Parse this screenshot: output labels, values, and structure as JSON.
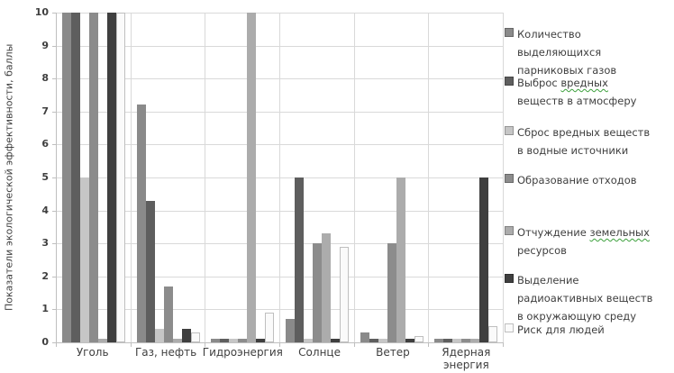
{
  "chart_data": {
    "type": "bar",
    "title": "",
    "xlabel": "",
    "ylabel": "Показатели экологической эффективности, баллы",
    "ylim": [
      0,
      10
    ],
    "ytick_step": 1,
    "grid": true,
    "legend_position": "right",
    "categories": [
      "Уголь",
      "Газ, нефть",
      "Гидроэнергия",
      "Солнце",
      "Ветер",
      "Ядерная энергия"
    ],
    "series": [
      {
        "name": "Количество выделяющихся парниковых газов",
        "label_lines": [
          "Количество",
          "выделяющихся",
          "парниковых газов"
        ],
        "color": "#8a8a8a",
        "values": [
          10,
          7.2,
          0.1,
          0.7,
          0.3,
          0.1
        ]
      },
      {
        "name": "Выброс вредных веществ в атмосферу",
        "label_lines": [
          "Выброс вредных",
          "веществ в атмосферу"
        ],
        "spellcheck_word": "вредных",
        "color": "#5e5e5e",
        "values": [
          10,
          4.3,
          0.1,
          5,
          0.1,
          0.1
        ]
      },
      {
        "name": "Сброс вредных веществ в водные источники",
        "label_lines": [
          "Сброс вредных веществ",
          "в водные источники"
        ],
        "color": "#c6c6c6",
        "values": [
          5,
          0.4,
          0.1,
          0.1,
          0.1,
          0.1
        ]
      },
      {
        "name": "Образование отходов",
        "label_lines": [
          "Образование отходов"
        ],
        "color": "#8c8c8c",
        "values": [
          10,
          1.7,
          0.1,
          3,
          3,
          0.1
        ]
      },
      {
        "name": "Отчуждение земельных ресурсов",
        "label_lines": [
          "Отчуждение земельных",
          "ресурсов"
        ],
        "spellcheck_word": "земельных",
        "color": "#acacac",
        "values": [
          0.1,
          0.1,
          10,
          3.3,
          5,
          0.1
        ]
      },
      {
        "name": "Выделение радиоактивных веществ в окружающую среду",
        "label_lines": [
          "Выделение",
          "радиоактивных веществ",
          "в окружающую среду"
        ],
        "color": "#3f3f3f",
        "values": [
          10,
          0.4,
          0.1,
          0.1,
          0.1,
          5
        ]
      },
      {
        "name": "Риск для людей",
        "label_lines": [
          "Риск для людей"
        ],
        "color": "#fafafa",
        "border_color": "#bfbfbf",
        "values": [
          10,
          0.3,
          0.9,
          2.9,
          0.2,
          0.5
        ]
      }
    ]
  },
  "colors": {
    "gridline": "#d9d9d9",
    "axis": "#bfbfbf",
    "text": "#3f3f3f",
    "spellcheck_underline": "#3ca03c",
    "background": "#ffffff"
  }
}
